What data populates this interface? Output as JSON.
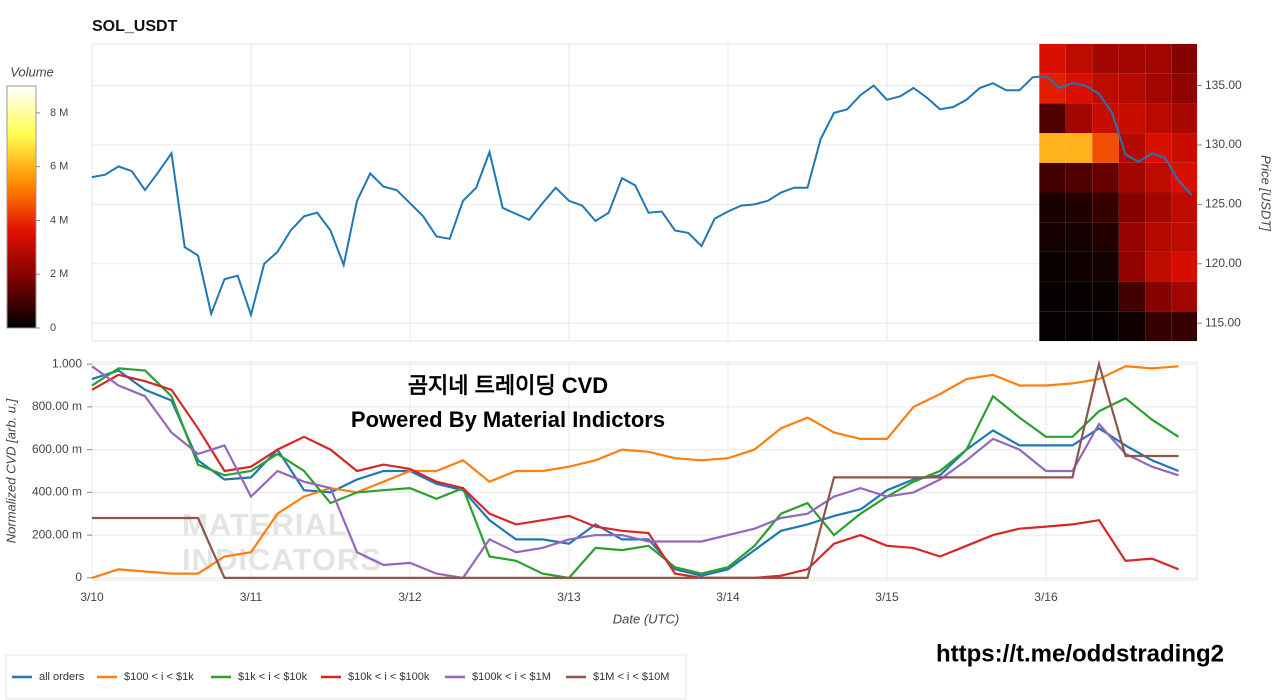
{
  "chart_data": [
    {
      "type": "line",
      "title": "SOL_USDT",
      "y_label": "Price [USDT]",
      "y_axis_side": "right",
      "color": "#1f77b4",
      "grid": true,
      "xlim": [
        0,
        166.8
      ],
      "xticks": [
        24,
        48,
        72,
        96,
        120,
        144
      ],
      "ylim": [
        113.5,
        138.5
      ],
      "yticks": [
        {
          "value": 115,
          "label": "115.00"
        },
        {
          "value": 120,
          "label": "120.00"
        },
        {
          "value": 125,
          "label": "125.00"
        },
        {
          "value": 130,
          "label": "130.00"
        },
        {
          "value": 135,
          "label": "135.00"
        }
      ],
      "x": [
        0,
        2,
        4,
        6,
        8,
        10,
        12,
        14,
        16,
        18,
        20,
        22,
        24,
        26,
        28,
        30,
        32,
        34,
        36,
        38,
        40,
        42,
        44,
        46,
        48,
        50,
        52,
        54,
        56,
        58,
        60,
        62,
        64,
        66,
        68,
        70,
        72,
        74,
        76,
        78,
        80,
        82,
        84,
        86,
        88,
        90,
        92,
        94,
        96,
        98,
        100,
        102,
        104,
        106,
        108,
        110,
        112,
        114,
        116,
        118,
        120,
        122,
        124,
        126,
        128,
        130,
        132,
        134,
        136,
        138,
        140,
        142,
        144,
        146,
        148,
        150,
        152,
        154,
        156,
        158,
        160,
        162,
        164,
        166
      ],
      "values": [
        127.3,
        127.5,
        128.2,
        127.8,
        126.2,
        127.7,
        129.3,
        121.4,
        120.7,
        115.8,
        118.7,
        119,
        115.7,
        120,
        121,
        122.8,
        124,
        124.3,
        122.8,
        119.9,
        125.3,
        127.6,
        126.5,
        126.2,
        125.1,
        124,
        122.3,
        122.1,
        125.3,
        126.4,
        129.4,
        124.7,
        124.2,
        123.7,
        125.1,
        126.4,
        125.3,
        124.9,
        123.6,
        124.3,
        127.2,
        126.6,
        124.3,
        124.4,
        122.8,
        122.6,
        121.5,
        123.8,
        124.4,
        124.9,
        125,
        125.3,
        126,
        126.4,
        126.4,
        130.5,
        132.7,
        133,
        134.2,
        135,
        133.8,
        134.1,
        134.8,
        134,
        133,
        133.2,
        133.8,
        134.8,
        135.2,
        134.6,
        134.6,
        135.7,
        135.8,
        134.8,
        135.2,
        135,
        134.3,
        132.7,
        129.2,
        128.6,
        129.3,
        128.9,
        127,
        125.8
      ]
    },
    {
      "type": "heatmap",
      "colorbar_title": "Volume",
      "colormap": [
        "#000000",
        "#7a0000",
        "#e01000",
        "#ff8c00",
        "#ffff50",
        "#ffffff"
      ],
      "clim": [
        0,
        9000000
      ],
      "cticks": [
        0,
        {
          "value": 2000000,
          "label": "2 M"
        },
        {
          "value": 4000000,
          "label": "4 M"
        },
        {
          "value": 6000000,
          "label": "6 M"
        },
        {
          "value": 8000000,
          "label": "8 M"
        }
      ],
      "x_bins": [
        143,
        147,
        151,
        155,
        159,
        163,
        166.8
      ],
      "y_bins": [
        113.5,
        116,
        118.5,
        121,
        123.5,
        126,
        128.5,
        131,
        133.5,
        136,
        138.5
      ],
      "values": [
        [
          100000,
          100000,
          100000,
          200000,
          800000,
          800000
        ],
        [
          100000,
          100000,
          150000,
          1000000,
          2000000,
          2500000
        ],
        [
          150000,
          200000,
          300000,
          2200000,
          3000000,
          3400000
        ],
        [
          300000,
          300000,
          500000,
          2300000,
          2800000,
          3000000
        ],
        [
          400000,
          500000,
          800000,
          2000000,
          2500000,
          3000000
        ],
        [
          1000000,
          1200000,
          1500000,
          2500000,
          3000000,
          3500000
        ],
        [
          6000000,
          6000000,
          4500000,
          2800000,
          3500000,
          3200000
        ],
        [
          1200000,
          2500000,
          3200000,
          3200000,
          2900000,
          2600000
        ],
        [
          3800000,
          3500000,
          3000000,
          2800000,
          2500000,
          2200000
        ],
        [
          3500000,
          3000000,
          2500000,
          2500000,
          2500000,
          2000000
        ]
      ]
    },
    {
      "type": "line",
      "y_label": "Normalized CVD [arb. u.]",
      "x_label": "Date (UTC)",
      "grid": true,
      "legend": "bottom",
      "annotations": [
        "곰지네 트레이딩 CVD",
        "Powered By Material Indictors"
      ],
      "watermark": [
        "MATERIAL",
        "INDICATORS"
      ],
      "xlim": [
        0,
        166.8
      ],
      "xticks": [
        {
          "value": 0,
          "label": "3/10"
        },
        {
          "value": 24,
          "label": "3/11"
        },
        {
          "value": 48,
          "label": "3/12"
        },
        {
          "value": 72,
          "label": "3/13"
        },
        {
          "value": 96,
          "label": "3/14"
        },
        {
          "value": 120,
          "label": "3/15"
        },
        {
          "value": 144,
          "label": "3/16"
        }
      ],
      "ylim": [
        -0.01,
        1.01
      ],
      "yticks": [
        0,
        {
          "value": 0.2,
          "label": "200.00 m"
        },
        {
          "value": 0.4,
          "label": "400.00 m"
        },
        {
          "value": 0.6,
          "label": "600.00 m"
        },
        {
          "value": 0.8,
          "label": "800.00 m"
        },
        {
          "value": 1,
          "label": "1.000"
        }
      ],
      "x": [
        0,
        4,
        8,
        12,
        16,
        20,
        24,
        28,
        32,
        36,
        40,
        44,
        48,
        52,
        56,
        60,
        64,
        68,
        72,
        76,
        80,
        84,
        88,
        92,
        96,
        100,
        104,
        108,
        112,
        116,
        120,
        124,
        128,
        132,
        136,
        140,
        144,
        148,
        152,
        156,
        160,
        164
      ],
      "series": [
        {
          "name": "all orders",
          "color": "#1f77b4",
          "values": [
            0.93,
            0.97,
            0.88,
            0.83,
            0.55,
            0.46,
            0.47,
            0.6,
            0.41,
            0.4,
            0.46,
            0.5,
            0.5,
            0.44,
            0.41,
            0.27,
            0.18,
            0.18,
            0.16,
            0.25,
            0.18,
            0.18,
            0.04,
            0.01,
            0.04,
            0.13,
            0.22,
            0.25,
            0.29,
            0.32,
            0.41,
            0.46,
            0.48,
            0.6,
            0.69,
            0.62,
            0.62,
            0.62,
            0.7,
            0.62,
            0.55,
            0.5
          ]
        },
        {
          "name": "$100 < i < $1k",
          "color": "#ff7f0e",
          "values": [
            0,
            0.04,
            0.03,
            0.02,
            0.02,
            0.1,
            0.12,
            0.3,
            0.38,
            0.42,
            0.4,
            0.45,
            0.5,
            0.5,
            0.55,
            0.45,
            0.5,
            0.5,
            0.52,
            0.55,
            0.6,
            0.59,
            0.56,
            0.55,
            0.56,
            0.6,
            0.7,
            0.75,
            0.68,
            0.65,
            0.65,
            0.8,
            0.86,
            0.93,
            0.95,
            0.9,
            0.9,
            0.91,
            0.93,
            0.99,
            0.98,
            0.99
          ]
        },
        {
          "name": "$1k < i < $10k",
          "color": "#2ca02c",
          "values": [
            0.9,
            0.98,
            0.97,
            0.85,
            0.53,
            0.48,
            0.5,
            0.58,
            0.5,
            0.35,
            0.4,
            0.41,
            0.42,
            0.37,
            0.42,
            0.1,
            0.08,
            0.02,
            0,
            0.14,
            0.13,
            0.15,
            0.05,
            0.02,
            0.05,
            0.15,
            0.3,
            0.35,
            0.2,
            0.3,
            0.38,
            0.45,
            0.5,
            0.6,
            0.85,
            0.75,
            0.66,
            0.66,
            0.78,
            0.84,
            0.74,
            0.66
          ]
        },
        {
          "name": "$10k < i < $100k",
          "color": "#d62728",
          "values": [
            0.88,
            0.95,
            0.92,
            0.88,
            0.7,
            0.5,
            0.52,
            0.6,
            0.66,
            0.6,
            0.5,
            0.53,
            0.51,
            0.45,
            0.42,
            0.3,
            0.25,
            0.27,
            0.29,
            0.24,
            0.22,
            0.21,
            0.02,
            0,
            0,
            0,
            0.01,
            0.04,
            0.16,
            0.2,
            0.15,
            0.14,
            0.1,
            0.15,
            0.2,
            0.23,
            0.24,
            0.25,
            0.27,
            0.08,
            0.09,
            0.04
          ]
        },
        {
          "name": "$100k < i < $1M",
          "color": "#9467bd",
          "values": [
            0.99,
            0.9,
            0.85,
            0.68,
            0.58,
            0.62,
            0.38,
            0.5,
            0.45,
            0.42,
            0.12,
            0.06,
            0.07,
            0.02,
            0,
            0.18,
            0.12,
            0.14,
            0.18,
            0.2,
            0.2,
            0.17,
            0.17,
            0.17,
            0.2,
            0.23,
            0.28,
            0.3,
            0.38,
            0.42,
            0.38,
            0.4,
            0.46,
            0.55,
            0.65,
            0.6,
            0.5,
            0.5,
            0.72,
            0.58,
            0.52,
            0.48
          ]
        },
        {
          "name": "$1M < i < $10M",
          "color": "#8c564b",
          "values": [
            0.28,
            0.28,
            0.28,
            0.28,
            0.28,
            0,
            0,
            0,
            0,
            0,
            0,
            0,
            0,
            0,
            0,
            0,
            0,
            0,
            0,
            0,
            0,
            0,
            0,
            0,
            0,
            0,
            0,
            0,
            0.47,
            0.47,
            0.47,
            0.47,
            0.47,
            0.47,
            0.47,
            0.47,
            0.47,
            0.47,
            1,
            0.57,
            0.57,
            0.57
          ]
        }
      ]
    }
  ],
  "footer": {
    "link": "https://t.me/oddstrading2"
  }
}
